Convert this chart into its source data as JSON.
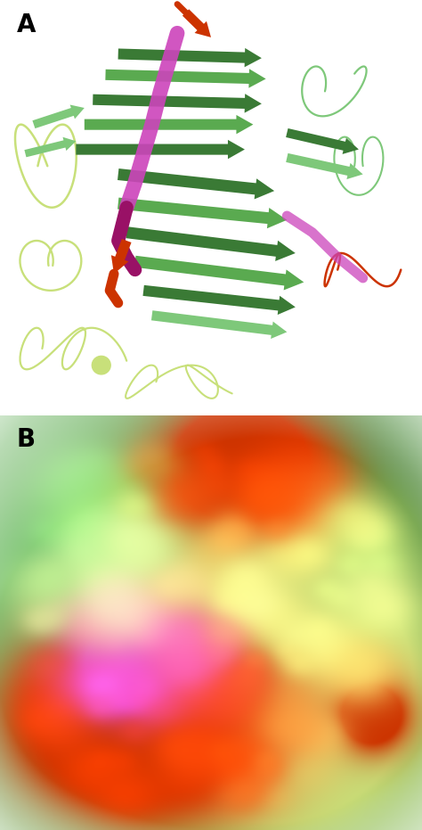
{
  "figure_width": 4.74,
  "figure_height": 9.31,
  "dpi": 100,
  "background_color": "#ffffff",
  "label_A": "A",
  "label_B": "B",
  "label_fontsize": 20,
  "label_fontweight": "bold",
  "colors": {
    "green_dark": "#3a7a35",
    "green_med": "#5aaa50",
    "green_light": "#7ec87a",
    "green_pale": "#b8d88a",
    "green_yellow": "#c8e07a",
    "green_bright": "#4db848",
    "red": "#cc3300",
    "orange_red": "#e04010",
    "magenta": "#cc44bb",
    "dark_magenta": "#991166",
    "white": "#ffffff"
  }
}
